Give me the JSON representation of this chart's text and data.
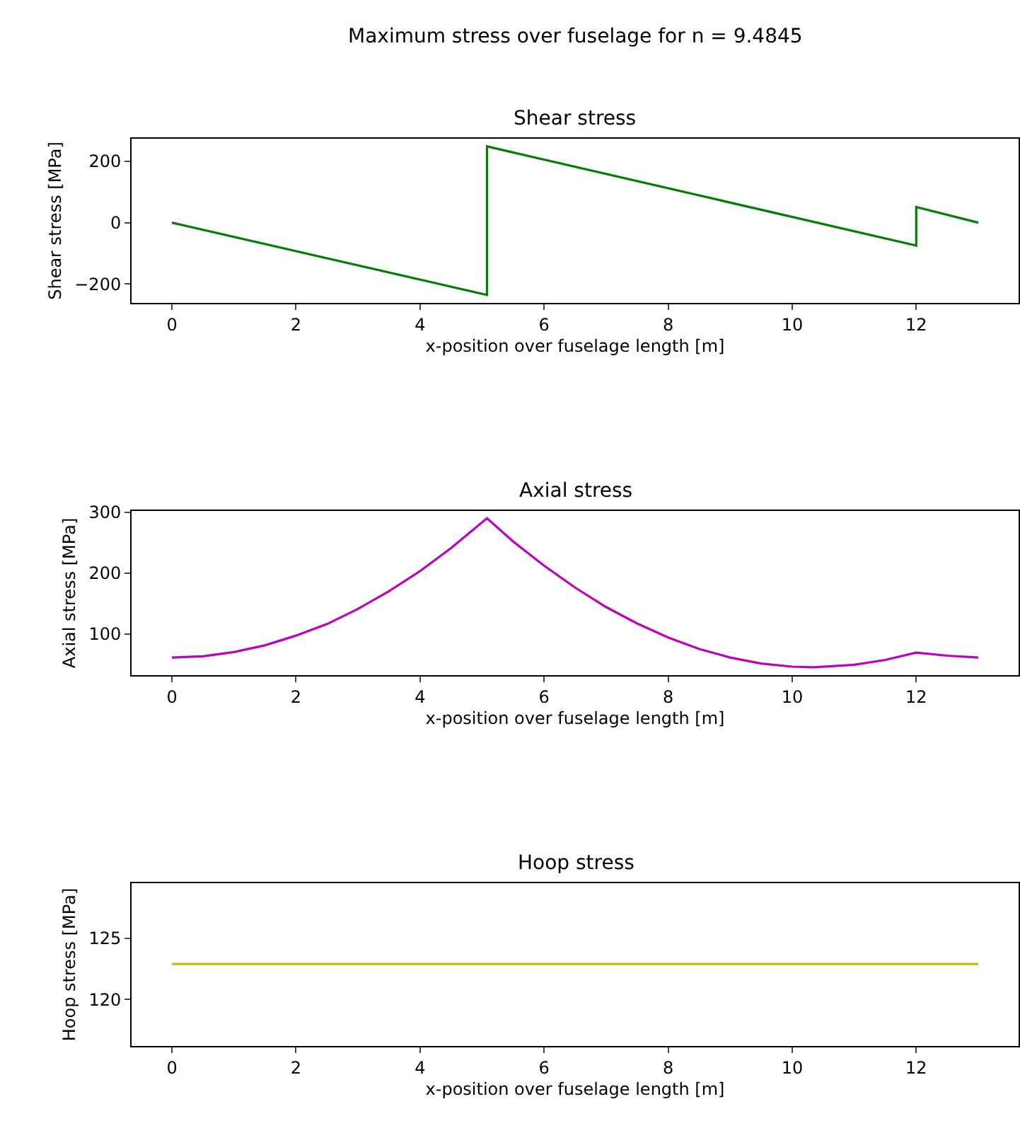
{
  "chart_data": [
    {
      "type": "line",
      "title": "Maximum stress over fuselage for n = 9.4845",
      "subtitle": "Shear stress",
      "xlabel": "x-position over fuselage length [m]",
      "ylabel": "Shear stress [MPa]",
      "xlim": [
        -0.65,
        13.65
      ],
      "xticks": [
        0,
        2,
        4,
        6,
        8,
        10,
        12
      ],
      "ylim": [
        -262,
        274
      ],
      "yticks": [
        -200,
        0,
        200
      ],
      "grid": false,
      "line_style": "solid",
      "marker": "none",
      "series": [
        {
          "color": "#008000",
          "x": [
            0,
            5.08,
            5.08,
            12,
            12,
            13
          ],
          "values": [
            0,
            -236,
            249,
            -75,
            51,
            0
          ]
        }
      ]
    },
    {
      "type": "line",
      "title": "Axial stress",
      "xlabel": "x-position over fuselage length [m]",
      "ylabel": "Axial stress [MPa]",
      "xlim": [
        -0.65,
        13.65
      ],
      "xticks": [
        0,
        2,
        4,
        6,
        8,
        10,
        12
      ],
      "ylim": [
        32,
        302
      ],
      "yticks": [
        100,
        200,
        300
      ],
      "grid": false,
      "line_style": "solid",
      "marker": "none",
      "series": [
        {
          "color": "#bf00bf",
          "x": [
            0,
            0.5,
            1,
            1.5,
            2,
            2.5,
            3,
            3.5,
            4,
            4.5,
            5.08,
            5.5,
            6,
            6.5,
            7,
            7.5,
            8,
            8.5,
            9,
            9.5,
            10,
            10.35,
            11,
            11.5,
            12,
            12.5,
            13
          ],
          "values": [
            61,
            63,
            70,
            81,
            97,
            116,
            141,
            170,
            203,
            241,
            290,
            252,
            212,
            176,
            144,
            117,
            94,
            75,
            61,
            51,
            46,
            45,
            49,
            57,
            69,
            64,
            61
          ]
        }
      ]
    },
    {
      "type": "line",
      "title": "Hoop stress",
      "xlabel": "x-position over fuselage length [m]",
      "ylabel": "Hoop stress [MPa]",
      "xlim": [
        -0.65,
        13.65
      ],
      "xticks": [
        0,
        2,
        4,
        6,
        8,
        10,
        12
      ],
      "ylim": [
        116.2,
        129.5
      ],
      "yticks": [
        120,
        125
      ],
      "grid": false,
      "line_style": "solid",
      "marker": "none",
      "series": [
        {
          "color": "#bfbf00",
          "x": [
            0,
            13
          ],
          "values": [
            122.9,
            122.9
          ]
        }
      ]
    }
  ]
}
